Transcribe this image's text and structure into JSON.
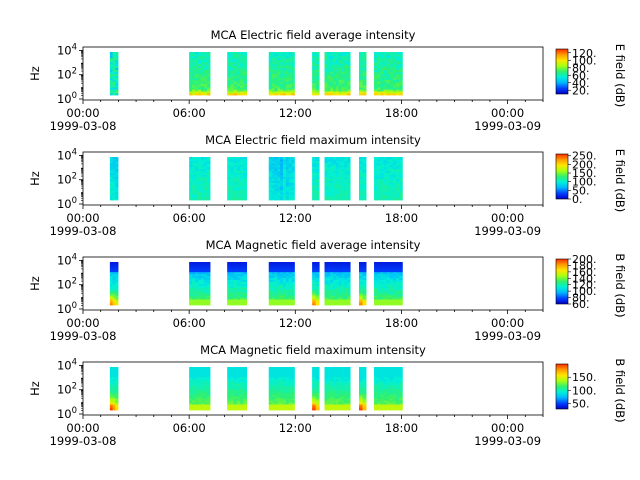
{
  "figure": {
    "background": "#ffffff"
  },
  "colorscale": [
    "#0000c8",
    "#0040ff",
    "#00b4ff",
    "#00f0d8",
    "#30f070",
    "#a8ff10",
    "#ffe600",
    "#ff9a00",
    "#ff2a00"
  ],
  "chart_data": [
    {
      "type": "heatmap",
      "title": "MCA  Electric field average intensity",
      "ylabel": "Hz",
      "yscale": "log",
      "yticks": [
        {
          "base": "10",
          "exp": "0"
        },
        {
          "base": "10",
          "exp": "2"
        },
        {
          "base": "10",
          "exp": "4"
        }
      ],
      "xticks": [
        "00:00",
        "06:00",
        "12:00",
        "18:00",
        "00:00"
      ],
      "date_start": "1999-03-08",
      "date_end": "1999-03-09",
      "colorbar": {
        "label": "E field (dB)",
        "ticks": [
          "20.",
          "40.",
          "60.",
          "80.",
          "100.",
          "120."
        ],
        "range": [
          10,
          130
        ]
      },
      "profile": "e_avg",
      "data_intervals": [
        [
          1.52,
          1.98
        ],
        [
          6.0,
          7.18
        ],
        [
          8.15,
          9.25
        ],
        [
          10.5,
          11.95
        ],
        [
          12.95,
          13.35
        ],
        [
          13.65,
          15.1
        ],
        [
          15.6,
          16.0
        ],
        [
          16.45,
          18.05
        ]
      ]
    },
    {
      "type": "heatmap",
      "title": "MCA  Electric field maximum intensity",
      "ylabel": "Hz",
      "yscale": "log",
      "yticks": [
        {
          "base": "10",
          "exp": "0"
        },
        {
          "base": "10",
          "exp": "2"
        },
        {
          "base": "10",
          "exp": "4"
        }
      ],
      "xticks": [
        "00:00",
        "06:00",
        "12:00",
        "18:00",
        "00:00"
      ],
      "date_start": "1999-03-08",
      "date_end": "1999-03-09",
      "colorbar": {
        "label": "E field (dB)",
        "ticks": [
          "0.",
          "50.",
          "100.",
          "150.",
          "200.",
          "250."
        ],
        "range": [
          0,
          260
        ]
      },
      "profile": "e_max",
      "data_intervals": [
        [
          1.52,
          1.98
        ],
        [
          6.0,
          7.18
        ],
        [
          8.15,
          9.25
        ],
        [
          10.5,
          11.95
        ],
        [
          12.95,
          13.35
        ],
        [
          13.65,
          15.1
        ],
        [
          15.6,
          16.0
        ],
        [
          16.45,
          18.05
        ]
      ]
    },
    {
      "type": "heatmap",
      "title": "MCA  Magnetic field average intensity",
      "ylabel": "Hz",
      "yscale": "log",
      "yticks": [
        {
          "base": "10",
          "exp": "0"
        },
        {
          "base": "10",
          "exp": "2"
        },
        {
          "base": "10",
          "exp": "4"
        }
      ],
      "xticks": [
        "00:00",
        "06:00",
        "12:00",
        "18:00",
        "00:00"
      ],
      "date_start": "1999-03-08",
      "date_end": "1999-03-09",
      "colorbar": {
        "label": "B field (dB)",
        "ticks": [
          "60.",
          "80.",
          "100.",
          "120.",
          "140.",
          "160.",
          "180.",
          "200."
        ],
        "range": [
          60,
          200
        ]
      },
      "profile": "b_avg",
      "data_intervals": [
        [
          1.52,
          1.98
        ],
        [
          6.0,
          7.18
        ],
        [
          8.15,
          9.25
        ],
        [
          10.5,
          11.95
        ],
        [
          12.95,
          13.35
        ],
        [
          13.65,
          15.1
        ],
        [
          15.6,
          16.0
        ],
        [
          16.45,
          18.05
        ]
      ]
    },
    {
      "type": "heatmap",
      "title": "MCA  Magnetic field maximum intensity",
      "ylabel": "Hz",
      "yscale": "log",
      "yticks": [
        {
          "base": "10",
          "exp": "0"
        },
        {
          "base": "10",
          "exp": "2"
        },
        {
          "base": "10",
          "exp": "4"
        }
      ],
      "xticks": [
        "00:00",
        "06:00",
        "12:00",
        "18:00",
        "00:00"
      ],
      "date_start": "1999-03-08",
      "date_end": "1999-03-09",
      "colorbar": {
        "label": "B field (dB)",
        "ticks": [
          "50.",
          "100.",
          "150."
        ],
        "range": [
          30,
          200
        ]
      },
      "profile": "b_max",
      "data_intervals": [
        [
          1.52,
          1.98
        ],
        [
          6.0,
          7.18
        ],
        [
          8.15,
          9.25
        ],
        [
          10.5,
          11.95
        ],
        [
          12.95,
          13.35
        ],
        [
          13.65,
          15.1
        ],
        [
          15.6,
          16.0
        ],
        [
          16.45,
          18.05
        ]
      ]
    }
  ]
}
